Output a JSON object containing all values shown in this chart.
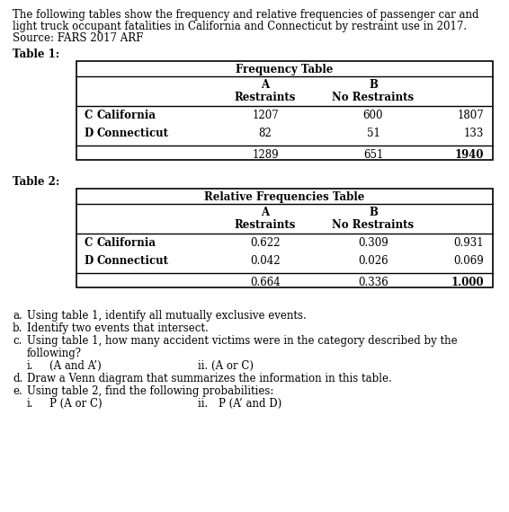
{
  "header_line1": "The following tables show the frequency and relative frequencies of passenger car and",
  "header_line2": "light truck occupant fatalities in California and Connecticut by restraint use in 2017.",
  "header_line3": "Source: FARS 2017 ARF",
  "table1_title": "Table 1:",
  "table1_header": "Frequency Table",
  "table2_title": "Table 2:",
  "table2_header": "Relative Frequencies Table",
  "col_a_label": "A",
  "col_b_label": "B",
  "col_a_sub": "Restraints",
  "col_b_sub": "No Restraints",
  "row1_letter": "C",
  "row1_name": "California",
  "row2_letter": "D",
  "row2_name": "Connecticut",
  "t1_r1_a": "1207",
  "t1_r1_b": "600",
  "t1_r1_tot": "1807",
  "t1_r2_a": "82",
  "t1_r2_b": "51",
  "t1_r2_tot": "133",
  "t1_tot_a": "1289",
  "t1_tot_b": "651",
  "t1_tot_tot": "1940",
  "t2_r1_a": "0.622",
  "t2_r1_b": "0.309",
  "t2_r1_tot": "0.931",
  "t2_r2_a": "0.042",
  "t2_r2_b": "0.026",
  "t2_r2_tot": "0.069",
  "t2_tot_a": "0.664",
  "t2_tot_b": "0.336",
  "t2_tot_tot": "1.000",
  "q_a": "Using table 1, identify all mutually exclusive events.",
  "q_b": "Identify two events that intersect.",
  "q_c1": "Using table 1, how many accident victims were in the category described by the",
  "q_c2": "following?",
  "q_ci_left": "(A and A’)",
  "q_ci_right": "ii. (A or C)",
  "q_d": "Draw a Venn diagram that summarizes the information in this table.",
  "q_e": "Using table 2, find the following probabilities:",
  "q_ei_left": "P (A or C)",
  "q_ei_right": "ii. P (A’ and D)",
  "bg": "#ffffff",
  "fg": "#000000",
  "fs": 8.5
}
